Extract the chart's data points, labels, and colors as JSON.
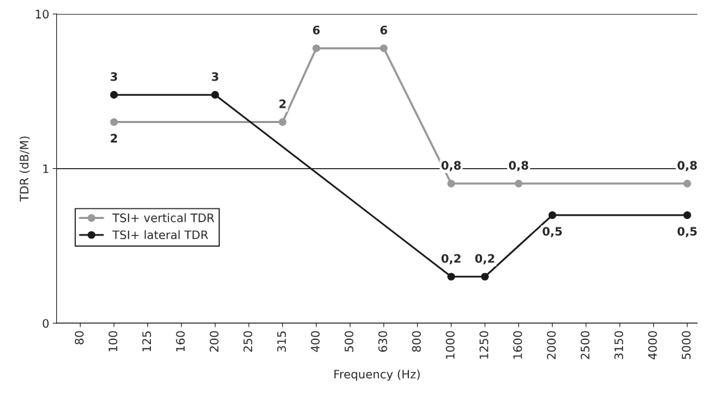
{
  "chart_data": {
    "type": "line",
    "xlabel": "Frequency (Hz)",
    "ylabel": "TDR (dB/M)",
    "categories": [
      "80",
      "100",
      "125",
      "160",
      "200",
      "250",
      "315",
      "400",
      "500",
      "630",
      "800",
      "1000",
      "1250",
      "1600",
      "2000",
      "2500",
      "3150",
      "4000",
      "5000"
    ],
    "series": [
      {
        "name": "TSI+ vertical TDR",
        "color": "#999999",
        "values": [
          null,
          2,
          null,
          null,
          null,
          null,
          2,
          6,
          null,
          6,
          null,
          0.8,
          null,
          0.8,
          null,
          null,
          null,
          null,
          0.8
        ],
        "value_labels": [
          null,
          "2",
          null,
          null,
          null,
          null,
          "2",
          "6",
          null,
          "6",
          null,
          "0,8",
          null,
          "0,8",
          null,
          null,
          null,
          null,
          "0,8"
        ]
      },
      {
        "name": "TSI+ lateral TDR",
        "color": "#1a1a1a",
        "values": [
          null,
          3,
          null,
          null,
          3,
          null,
          null,
          null,
          null,
          null,
          null,
          0.2,
          0.2,
          null,
          0.5,
          null,
          null,
          null,
          0.5
        ],
        "value_labels": [
          null,
          "3",
          null,
          null,
          "3",
          null,
          null,
          null,
          null,
          null,
          null,
          "0,2",
          "0,2",
          null,
          "0,5",
          null,
          null,
          null,
          "0,5"
        ]
      }
    ],
    "log": "y",
    "ylim": [
      0.1,
      10
    ],
    "yticks": [
      {
        "value": 0.1,
        "label": "0"
      },
      1,
      10
    ],
    "grid": "y",
    "legend": "center left",
    "marker": "circle",
    "line_style": "solid"
  }
}
